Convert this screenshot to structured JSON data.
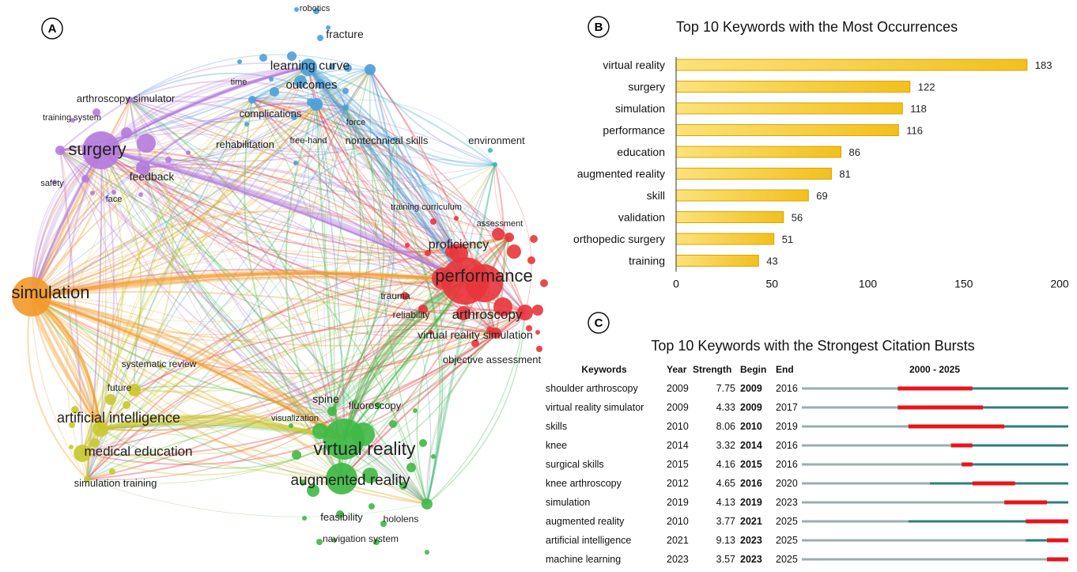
{
  "panels": {
    "a_label": "A",
    "b_label": "B",
    "c_label": "C"
  },
  "network": {
    "colors": {
      "purple": "#b57bdc",
      "blue": "#4b9edc",
      "red": "#e8353c",
      "orange": "#f39a2b",
      "yellow": "#c9c82c",
      "green": "#3fb845",
      "teal": "#35b8b8"
    },
    "nodes": [
      {
        "label": "robotics",
        "cluster": "blue",
        "size": 11
      },
      {
        "label": "fracture",
        "cluster": "blue",
        "size": 14
      },
      {
        "label": "learning curve",
        "cluster": "blue",
        "size": 16
      },
      {
        "label": "outcomes",
        "cluster": "blue",
        "size": 15
      },
      {
        "label": "time",
        "cluster": "blue",
        "size": 11
      },
      {
        "label": "complications",
        "cluster": "blue",
        "size": 13
      },
      {
        "label": "force",
        "cluster": "blue",
        "size": 11
      },
      {
        "label": "free-hand",
        "cluster": "blue",
        "size": 11
      },
      {
        "label": "nontechnical skills",
        "cluster": "blue",
        "size": 13
      },
      {
        "label": "rehabilitation",
        "cluster": "purple",
        "size": 13
      },
      {
        "label": "arthroscopy simulator",
        "cluster": "purple",
        "size": 13
      },
      {
        "label": "training system",
        "cluster": "purple",
        "size": 11
      },
      {
        "label": "surgery",
        "cluster": "purple",
        "size": 22
      },
      {
        "label": "feedback",
        "cluster": "purple",
        "size": 14
      },
      {
        "label": "safety",
        "cluster": "purple",
        "size": 11
      },
      {
        "label": "face",
        "cluster": "purple",
        "size": 11
      },
      {
        "label": "environment",
        "cluster": "teal",
        "size": 13
      },
      {
        "label": "training curriculum",
        "cluster": "red",
        "size": 11
      },
      {
        "label": "assessment",
        "cluster": "red",
        "size": 11
      },
      {
        "label": "proficiency",
        "cluster": "red",
        "size": 16
      },
      {
        "label": "performance",
        "cluster": "red",
        "size": 22
      },
      {
        "label": "trauma",
        "cluster": "red",
        "size": 12
      },
      {
        "label": "reliability",
        "cluster": "red",
        "size": 12
      },
      {
        "label": "arthroscopy",
        "cluster": "red",
        "size": 17
      },
      {
        "label": "virtual reality simulation",
        "cluster": "red",
        "size": 14
      },
      {
        "label": "objective assessment",
        "cluster": "red",
        "size": 13
      },
      {
        "label": "simulation",
        "cluster": "orange",
        "size": 22
      },
      {
        "label": "systematic review",
        "cluster": "yellow",
        "size": 12
      },
      {
        "label": "future",
        "cluster": "yellow",
        "size": 12
      },
      {
        "label": "artificial intelligence",
        "cluster": "yellow",
        "size": 18
      },
      {
        "label": "medical education",
        "cluster": "yellow",
        "size": 17
      },
      {
        "label": "simulation training",
        "cluster": "yellow",
        "size": 13
      },
      {
        "label": "spine",
        "cluster": "green",
        "size": 14
      },
      {
        "label": "fluoroscopy",
        "cluster": "green",
        "size": 13
      },
      {
        "label": "visualization",
        "cluster": "green",
        "size": 11
      },
      {
        "label": "virtual reality",
        "cluster": "green",
        "size": 23
      },
      {
        "label": "augmented reality",
        "cluster": "green",
        "size": 19
      },
      {
        "label": "feasibility",
        "cluster": "green",
        "size": 13
      },
      {
        "label": "hololens",
        "cluster": "green",
        "size": 12
      },
      {
        "label": "navigation system",
        "cluster": "green",
        "size": 12
      }
    ]
  },
  "chart_data": [
    {
      "type": "bar",
      "orientation": "horizontal",
      "title": "Top 10 Keywords with the Most Occurrences",
      "categories": [
        "virtual reality",
        "surgery",
        "simulation",
        "performance",
        "education",
        "augmented reality",
        "skill",
        "validation",
        "orthopedic surgery",
        "training"
      ],
      "values": [
        183,
        122,
        118,
        116,
        86,
        81,
        69,
        56,
        51,
        43
      ],
      "xlim": [
        0,
        200
      ],
      "xticks": [
        "0",
        "50",
        "100",
        "150",
        "200"
      ],
      "bar_color": "#f2c01e",
      "bar_edge_color": "#d9a400",
      "grid": false
    },
    {
      "type": "table",
      "title": "Top 10 Keywords with the Strongest Citation Bursts",
      "headers": [
        "Keywords",
        "Year",
        "Strength",
        "Begin",
        "End",
        "2000 - 2025"
      ],
      "timeline_range": [
        2000,
        2025
      ],
      "line_color": "#2f7d7d",
      "burst_color": "#e8141b",
      "rows": [
        {
          "keyword": "shoulder arthroscopy",
          "year": "2009",
          "strength": "7.75",
          "begin": "2009",
          "end": "2016"
        },
        {
          "keyword": "virtual reality simulator",
          "year": "2009",
          "strength": "4.33",
          "begin": "2009",
          "end": "2017"
        },
        {
          "keyword": "skills",
          "year": "2010",
          "strength": "8.06",
          "begin": "2010",
          "end": "2019"
        },
        {
          "keyword": "knee",
          "year": "2014",
          "strength": "3.32",
          "begin": "2014",
          "end": "2016"
        },
        {
          "keyword": "surgical skills",
          "year": "2015",
          "strength": "4.16",
          "begin": "2015",
          "end": "2016"
        },
        {
          "keyword": "knee arthroscopy",
          "year": "2012",
          "strength": "4.65",
          "begin": "2016",
          "end": "2020"
        },
        {
          "keyword": "simulation",
          "year": "2019",
          "strength": "4.13",
          "begin": "2019",
          "end": "2023"
        },
        {
          "keyword": "augmented reality",
          "year": "2010",
          "strength": "3.77",
          "begin": "2021",
          "end": "2025"
        },
        {
          "keyword": "artificial intelligence",
          "year": "2021",
          "strength": "9.13",
          "begin": "2023",
          "end": "2025"
        },
        {
          "keyword": "machine learning",
          "year": "2023",
          "strength": "3.57",
          "begin": "2023",
          "end": "2025"
        }
      ]
    }
  ]
}
